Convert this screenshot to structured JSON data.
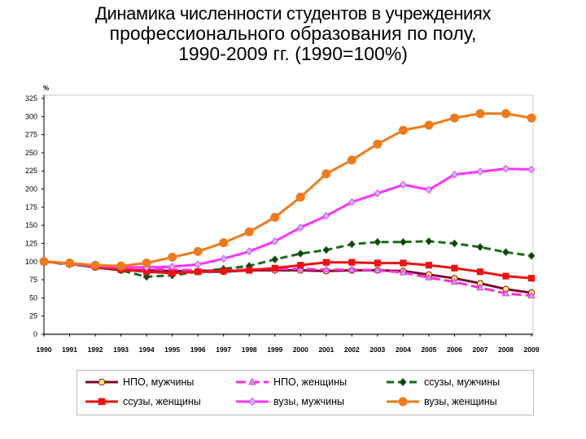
{
  "title": {
    "line1": "Динамика численности студентов в учреждениях",
    "line2": "профессионального образования по полу,",
    "line3": "1990-2009 гг. (1990=100%)"
  },
  "chart_data": {
    "type": "line",
    "y_unit": "%",
    "x": [
      "1990",
      "1991",
      "1992",
      "1993",
      "1994",
      "1995",
      "1996",
      "1997",
      "1998",
      "1999",
      "2000",
      "2001",
      "2002",
      "2003",
      "2004",
      "2005",
      "2006",
      "2007",
      "2008",
      "2009"
    ],
    "ylim": [
      0,
      325
    ],
    "yticks": [
      0,
      25,
      50,
      75,
      100,
      125,
      150,
      175,
      200,
      225,
      250,
      275,
      300,
      325
    ],
    "grid": false,
    "legend_position": "bottom",
    "series": [
      {
        "name": "НПО, мужчины",
        "color": "#7b0a2e",
        "marker": "circle",
        "marker_fill": "#ffff66",
        "dash": "solid",
        "values": [
          100,
          97,
          92,
          88,
          88,
          87,
          86,
          86,
          88,
          88,
          88,
          87,
          88,
          88,
          87,
          82,
          77,
          70,
          62,
          57
        ]
      },
      {
        "name": "НПО, женщины",
        "color": "#ff33cc",
        "marker": "triangle",
        "marker_fill": "#aaaaff",
        "dash": "long-dash",
        "values": [
          100,
          97,
          93,
          90,
          90,
          89,
          88,
          88,
          89,
          90,
          90,
          89,
          89,
          88,
          85,
          78,
          72,
          64,
          56,
          53
        ]
      },
      {
        "name": "ссузы, мужчины",
        "color": "#1a6b1a",
        "marker": "diamond",
        "marker_fill": "#1a3a1a",
        "dash": "dash",
        "values": [
          100,
          96,
          93,
          88,
          79,
          81,
          86,
          90,
          94,
          103,
          111,
          116,
          124,
          127,
          127,
          128,
          125,
          120,
          113,
          108
        ]
      },
      {
        "name": "ссузы, женщины",
        "color": "#ee1111",
        "marker": "square",
        "marker_fill": "#ee1111",
        "dash": "solid",
        "values": [
          100,
          97,
          93,
          89,
          86,
          84,
          86,
          87,
          88,
          91,
          95,
          99,
          99,
          98,
          98,
          95,
          91,
          86,
          80,
          77
        ]
      },
      {
        "name": "вузы, мужчины",
        "color": "#ff33ff",
        "marker": "diamond",
        "marker_fill": "#aaccff",
        "dash": "solid",
        "values": [
          100,
          97,
          94,
          92,
          92,
          93,
          96,
          104,
          114,
          128,
          147,
          163,
          182,
          194,
          206,
          199,
          220,
          224,
          228,
          227
        ]
      },
      {
        "name": "вузы, женщины",
        "color": "#f07a1a",
        "marker": "circle",
        "marker_fill": "#f07a1a",
        "dash": "solid",
        "values": [
          100,
          98,
          95,
          94,
          98,
          106,
          114,
          126,
          141,
          161,
          189,
          221,
          240,
          262,
          281,
          288,
          298,
          304,
          304,
          298
        ]
      }
    ]
  }
}
